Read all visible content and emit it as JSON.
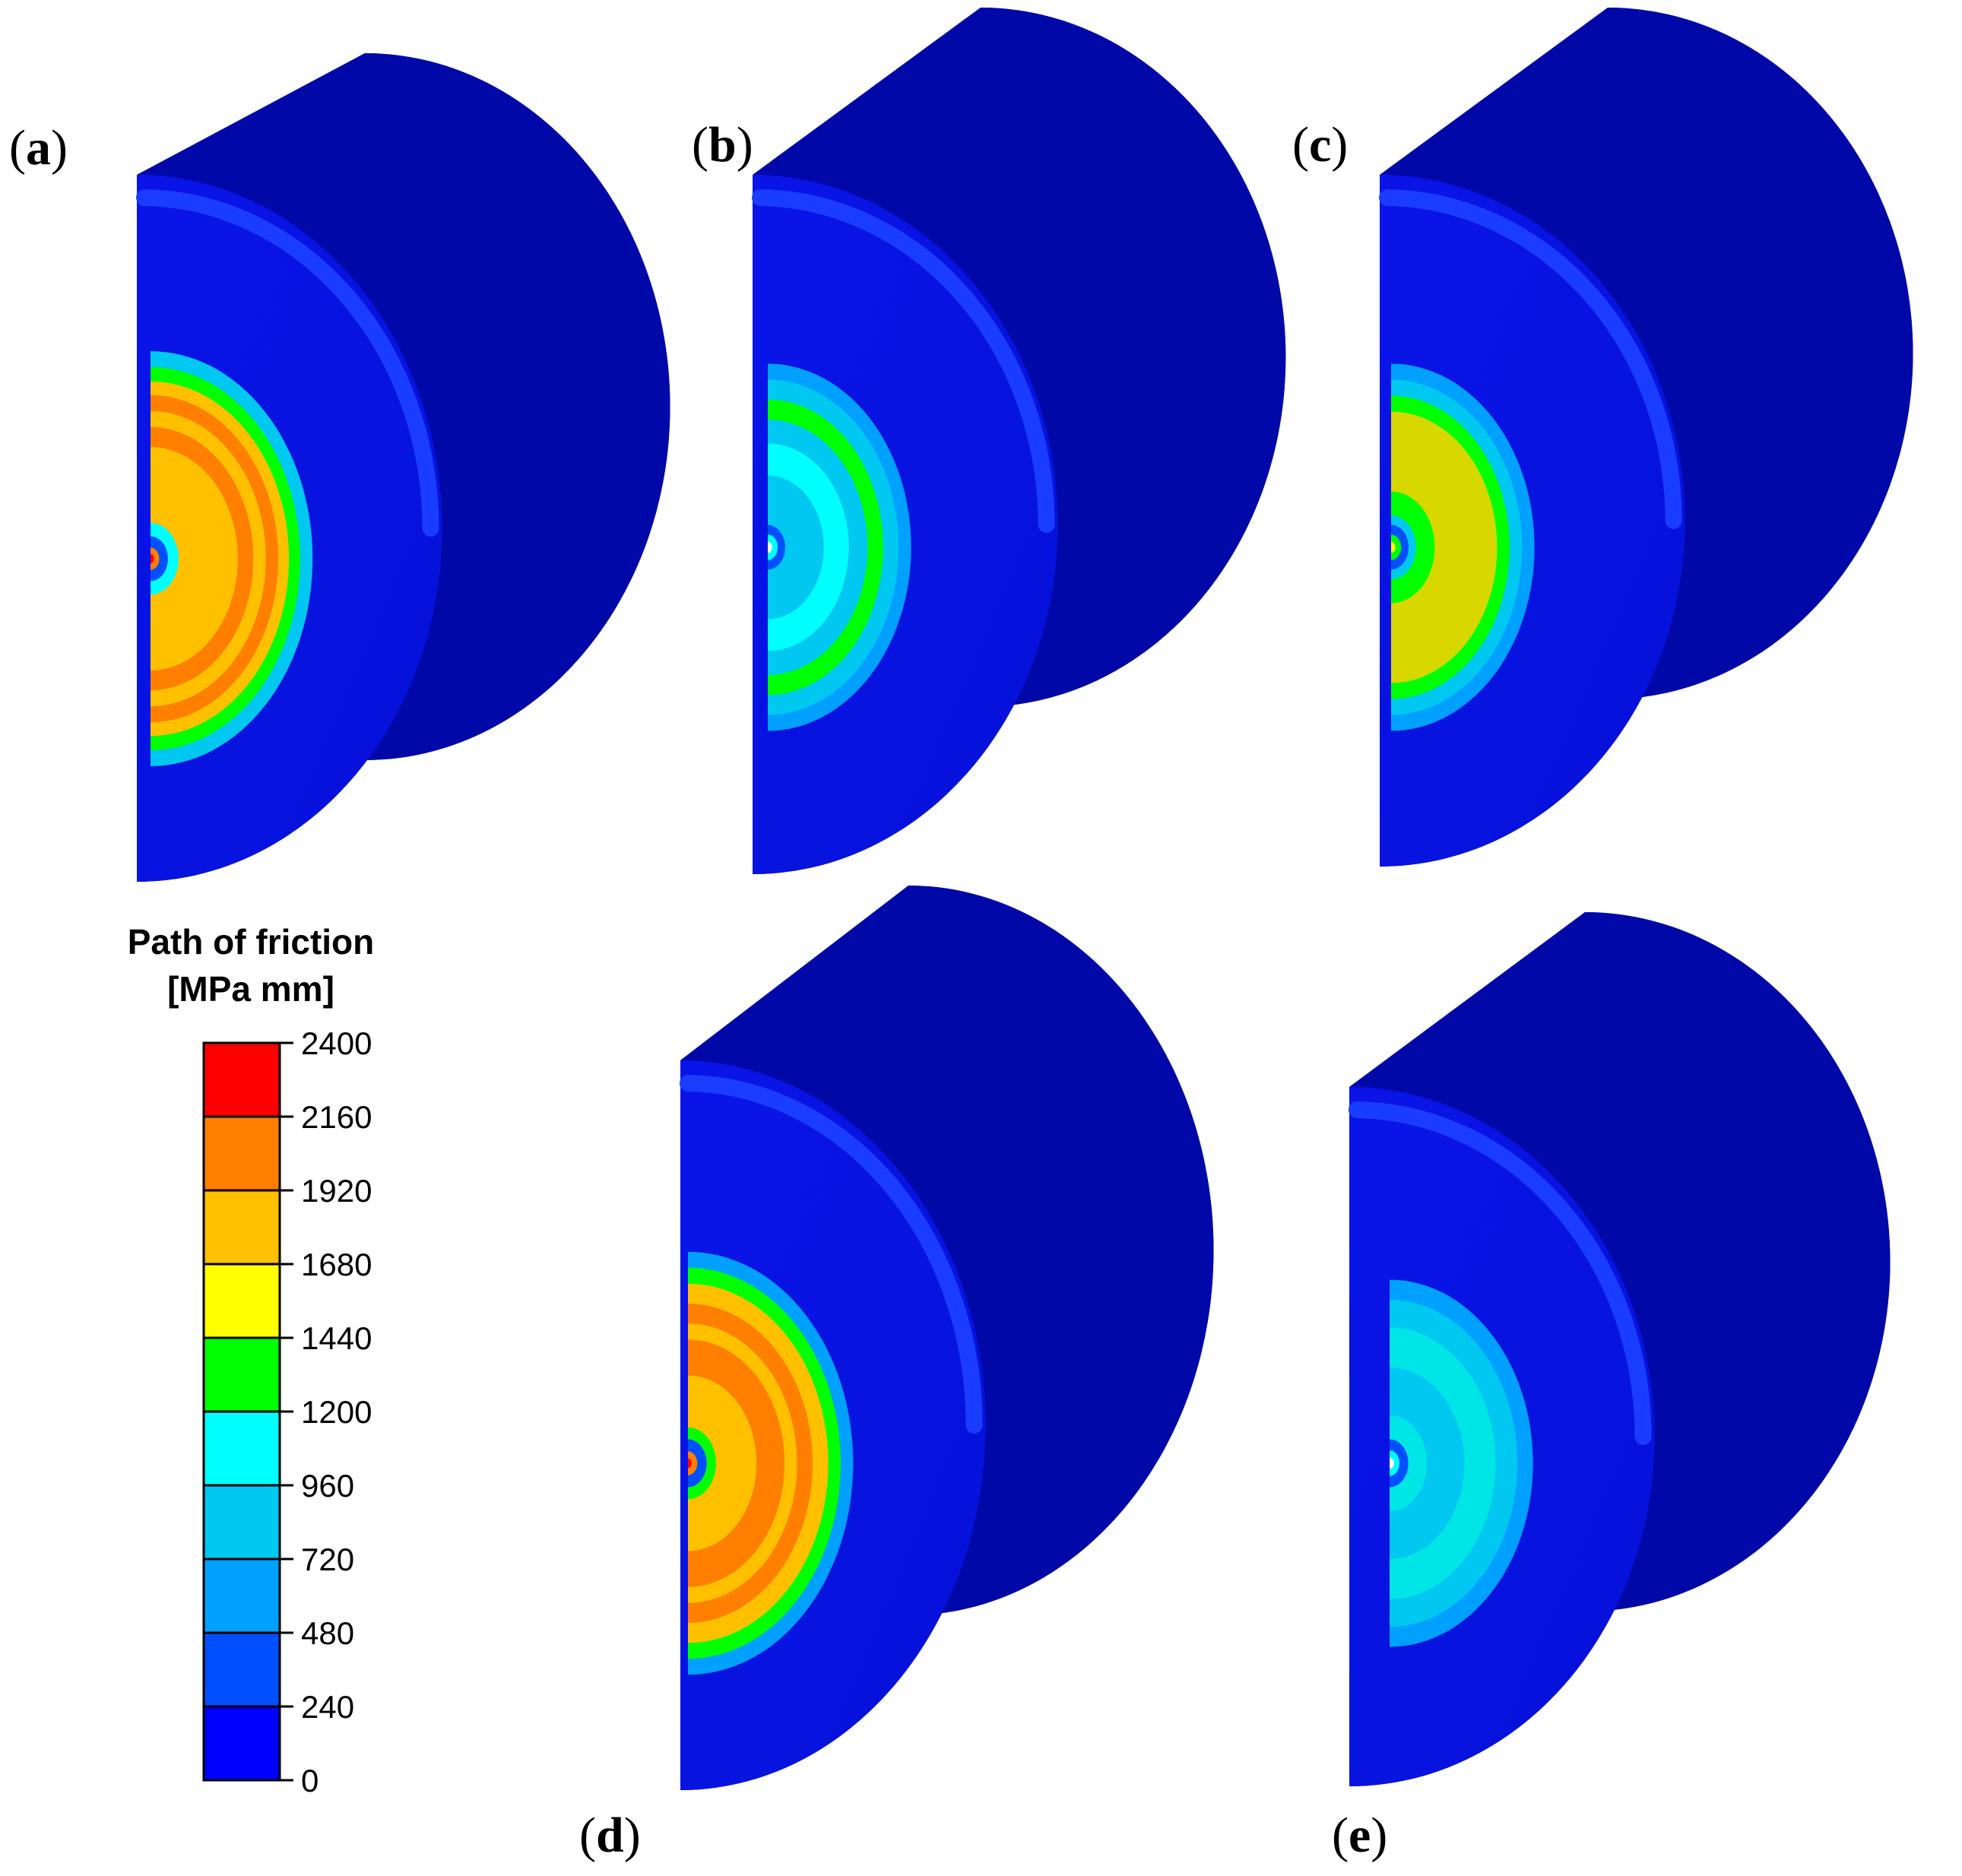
{
  "panels": [
    {
      "label": "a",
      "max_band_color": "#ff7f00"
    },
    {
      "label": "b",
      "max_band_color": "#00e000"
    },
    {
      "label": "c",
      "max_band_color": "#d8d800"
    },
    {
      "label": "d",
      "max_band_color": "#ff7f00"
    },
    {
      "label": "e",
      "max_band_color": "#00e6e6"
    }
  ],
  "legend": {
    "title_line1": "Path of friction",
    "title_line2": "[MPa mm]",
    "ticks": [
      "2400",
      "2160",
      "1920",
      "1680",
      "1440",
      "1200",
      "960",
      "720",
      "480",
      "240",
      "0"
    ],
    "colors": [
      "#0000ff",
      "#0050ff",
      "#00a0ff",
      "#00c8f0",
      "#00ffff",
      "#00ff00",
      "#ffff00",
      "#ffc000",
      "#ff7f00",
      "#ff0000"
    ]
  }
}
